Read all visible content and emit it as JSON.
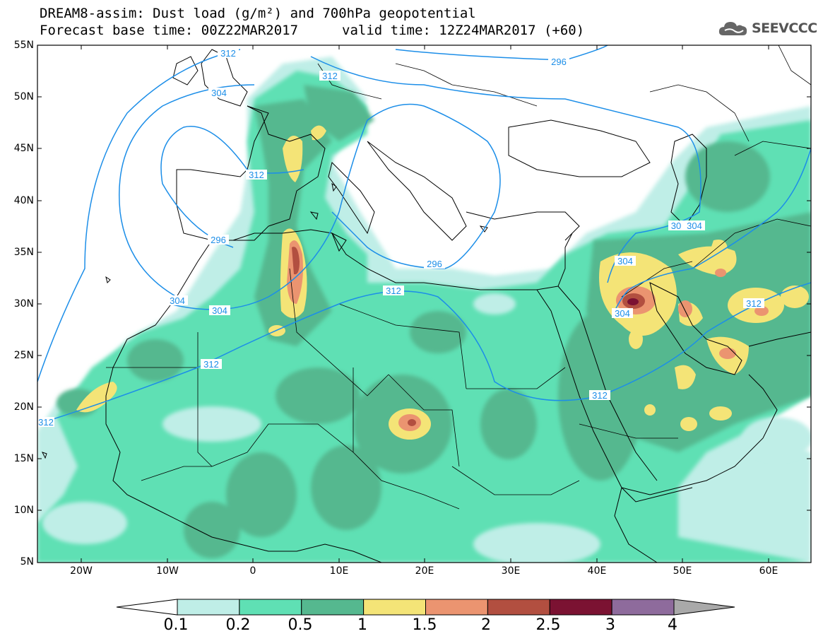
{
  "header": {
    "line1": "DREAM8-assim: Dust load (g/m²) and 700hPa geopotential",
    "line2": "Forecast base time: 00Z22MAR2017",
    "valid": "valid time: 12Z24MAR2017 (+60)",
    "logo_text": "SEEVCCC",
    "logo_icon": "cloud-icon"
  },
  "axes": {
    "lat_labels": [
      "55N",
      "50N",
      "45N",
      "40N",
      "35N",
      "30N",
      "25N",
      "20N",
      "15N",
      "10N",
      "5N"
    ],
    "lon_labels": [
      "20W",
      "10W",
      "0",
      "10E",
      "20E",
      "30E",
      "40E",
      "50E",
      "60E"
    ]
  },
  "contour_labels": [
    "312",
    "304",
    "296",
    "312",
    "296",
    "296",
    "304",
    "304",
    "312",
    "312",
    "312",
    "312",
    "304",
    "304",
    "30",
    "312",
    "312"
  ],
  "colorbar": {
    "ticks": [
      "0.1",
      "0.2",
      "0.5",
      "1",
      "1.5",
      "2",
      "2.5",
      "3",
      "4"
    ],
    "colors": [
      "#ffffff",
      "#bfeee7",
      "#5fe0b4",
      "#55b88f",
      "#f4e477",
      "#eb9470",
      "#b24f40",
      "#7b1232",
      "#8e6b9c",
      "#a9a9a9"
    ]
  },
  "legend_colors": {
    "land": "#ffffff",
    "coast": "#000000",
    "contour": "#1c8ee8"
  }
}
